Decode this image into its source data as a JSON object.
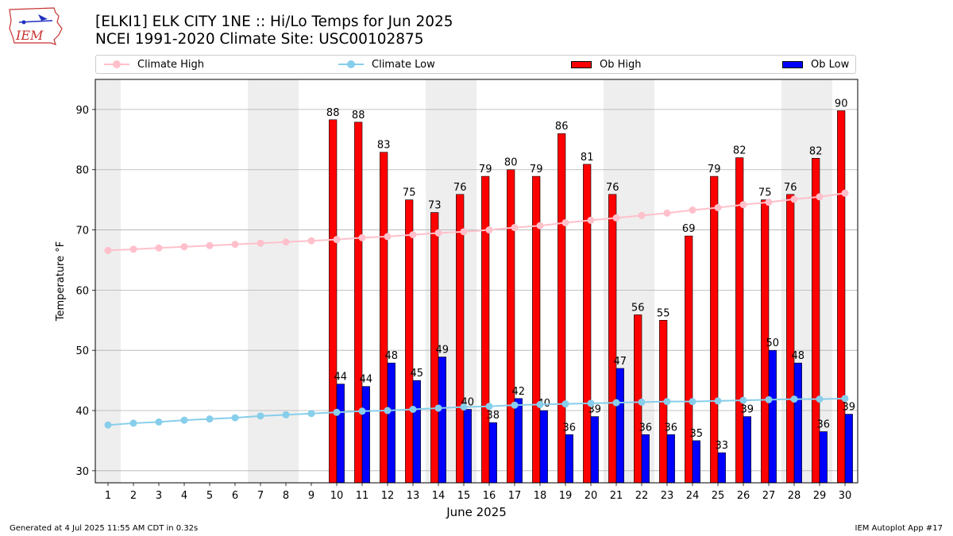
{
  "header": {
    "logo_text": "IEM",
    "title_line1": "[ELKI1] ELK CITY 1NE :: Hi/Lo Temps for Jun 2025",
    "title_line2": "NCEI 1991-2020 Climate Site: USC00102875"
  },
  "legend": {
    "climate_high": "Climate High",
    "climate_low": "Climate Low",
    "ob_high": "Ob High",
    "ob_low": "Ob Low"
  },
  "footer": {
    "left": "Generated at 4 Jul 2025 11:55 AM CDT in 0.32s",
    "right": "IEM Autoplot App #17"
  },
  "colors": {
    "climate_high": "#ffc0cb",
    "climate_low": "#87ceeb",
    "ob_high": "#ff0000",
    "ob_low": "#0000ff",
    "weekend_shade": "#eeeeee",
    "grid": "#b0b0b0"
  },
  "chart_data": {
    "type": "bar",
    "xlabel": "June 2025",
    "ylabel": "Temperature °F",
    "ylim": [
      28,
      95
    ],
    "xlim": [
      0.5,
      30.5
    ],
    "yticks": [
      30,
      40,
      50,
      60,
      70,
      80,
      90
    ],
    "days": [
      1,
      2,
      3,
      4,
      5,
      6,
      7,
      8,
      9,
      10,
      11,
      12,
      13,
      14,
      15,
      16,
      17,
      18,
      19,
      20,
      21,
      22,
      23,
      24,
      25,
      26,
      27,
      28,
      29,
      30
    ],
    "weekend_days": [
      1,
      7,
      8,
      14,
      15,
      21,
      22,
      28,
      29
    ],
    "grid": "horizontal",
    "legend_position": "top",
    "series": [
      {
        "name": "Ob High",
        "kind": "bar",
        "values": [
          null,
          null,
          null,
          null,
          null,
          null,
          null,
          null,
          null,
          88.3,
          87.9,
          82.9,
          75,
          72.9,
          75.9,
          78.9,
          80,
          78.9,
          86,
          80.9,
          75.9,
          55.9,
          55,
          69,
          78.9,
          82,
          75,
          75.9,
          81.9,
          89.8
        ],
        "labels": [
          null,
          null,
          null,
          null,
          null,
          null,
          null,
          null,
          null,
          "88",
          "88",
          "83",
          "75",
          "73",
          "76",
          "79",
          "80",
          "79",
          "86",
          "81",
          "76",
          "56",
          "55",
          "69",
          "79",
          "82",
          "75",
          "76",
          "82",
          "90"
        ]
      },
      {
        "name": "Ob Low",
        "kind": "bar",
        "values": [
          null,
          null,
          null,
          null,
          null,
          null,
          null,
          null,
          null,
          44.4,
          44,
          47.9,
          45,
          48.9,
          40.2,
          38,
          42,
          40,
          36,
          39,
          47,
          36,
          36,
          35,
          33,
          39,
          50,
          47.9,
          36.5,
          39.4
        ],
        "labels": [
          null,
          null,
          null,
          null,
          null,
          null,
          null,
          null,
          null,
          "44",
          "44",
          "48",
          "45",
          "49",
          "40",
          "38",
          "42",
          "40",
          "36",
          "39",
          "47",
          "36",
          "36",
          "35",
          "33",
          "39",
          "50",
          "48",
          "36",
          "39"
        ]
      },
      {
        "name": "Climate High",
        "kind": "line",
        "values": [
          66.6,
          66.8,
          67.0,
          67.2,
          67.4,
          67.6,
          67.8,
          68.0,
          68.2,
          68.4,
          68.7,
          68.9,
          69.2,
          69.5,
          69.7,
          70.0,
          70.4,
          70.7,
          71.2,
          71.6,
          72.0,
          72.4,
          72.8,
          73.3,
          73.7,
          74.2,
          74.6,
          75.1,
          75.5,
          76.1
        ]
      },
      {
        "name": "Climate Low",
        "kind": "line",
        "values": [
          37.6,
          37.9,
          38.1,
          38.4,
          38.6,
          38.8,
          39.1,
          39.3,
          39.5,
          39.7,
          39.9,
          40.0,
          40.2,
          40.4,
          40.6,
          40.7,
          40.9,
          41.0,
          41.1,
          41.2,
          41.3,
          41.4,
          41.5,
          41.5,
          41.6,
          41.7,
          41.8,
          41.9,
          41.9,
          42.0
        ]
      }
    ]
  }
}
